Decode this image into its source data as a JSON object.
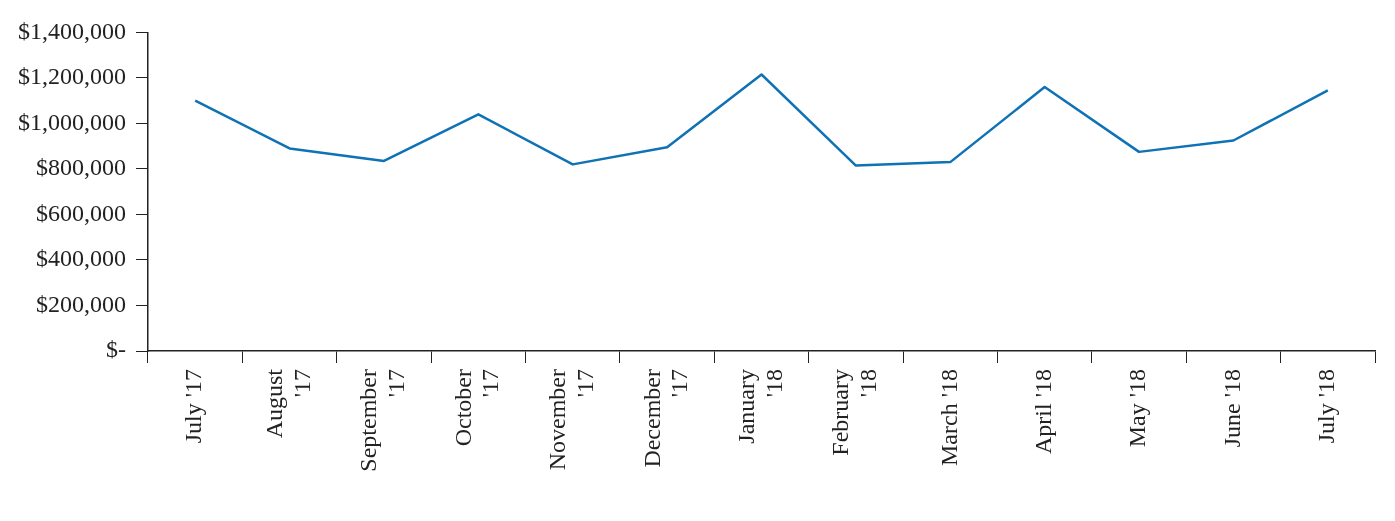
{
  "chart_data": {
    "type": "line",
    "categories": [
      "July '17",
      "August '17",
      "September '17",
      "October '17",
      "November '17",
      "December '17",
      "January '18",
      "February '18",
      "March '18",
      "April '18",
      "May '18",
      "June '18",
      "July '18"
    ],
    "series": [
      {
        "color": "#0e72b5",
        "values": [
          1100000,
          890000,
          835000,
          1040000,
          820000,
          895000,
          1215000,
          815000,
          830000,
          1160000,
          875000,
          925000,
          1145000
        ]
      }
    ],
    "ylim": [
      0,
      1400000
    ],
    "yticks": [
      {
        "value": 0,
        "label": "$-"
      },
      {
        "value": 200000,
        "label": "$200,000"
      },
      {
        "value": 400000,
        "label": "$400,000"
      },
      {
        "value": 600000,
        "label": "$600,000"
      },
      {
        "value": 800000,
        "label": "$800,000"
      },
      {
        "value": 1000000,
        "label": "$1,000,000"
      },
      {
        "value": 1200000,
        "label": "$1,200,000"
      },
      {
        "value": 1400000,
        "label": "$1,400,000"
      }
    ],
    "grid": false,
    "legend": false,
    "marker": "none",
    "line_style": "solid"
  }
}
